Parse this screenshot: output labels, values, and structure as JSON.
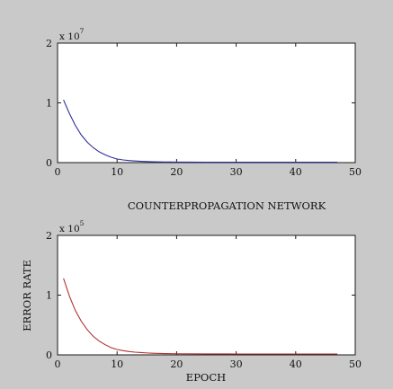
{
  "colors": {
    "figure_background": "#c9c9c9",
    "axes_background": "#ffffff",
    "axis": "#1a1a1a",
    "top_series": "#2f2f9a",
    "bottom_series": "#b03030"
  },
  "chart_data": [
    {
      "type": "line",
      "title": "",
      "xlabel": "",
      "ylabel": "",
      "xlim": [
        0,
        50
      ],
      "ylim": [
        0,
        2
      ],
      "x_ticks": [
        "0",
        "10",
        "20",
        "30",
        "40",
        "50"
      ],
      "y_ticks": [
        "0",
        "1",
        "2"
      ],
      "y_multiplier": {
        "base": "x 10",
        "exponent": "7"
      },
      "grid": false,
      "legend": "none",
      "series": [
        {
          "color": "#2f2f9a",
          "x": [
            1,
            2,
            3,
            4,
            5,
            6,
            7,
            8,
            9,
            10,
            11,
            12,
            13,
            14,
            15,
            16,
            17,
            18,
            19,
            20,
            22,
            25,
            30,
            35,
            40,
            45,
            47
          ],
          "y": [
            1.05,
            0.82,
            0.62,
            0.46,
            0.34,
            0.25,
            0.18,
            0.13,
            0.09,
            0.06,
            0.045,
            0.035,
            0.028,
            0.022,
            0.018,
            0.015,
            0.013,
            0.011,
            0.01,
            0.009,
            0.008,
            0.007,
            0.006,
            0.006,
            0.006,
            0.006,
            0.006
          ]
        }
      ]
    },
    {
      "type": "line",
      "title": "COUNTERPROPAGATION NETWORK",
      "xlabel": "EPOCH",
      "ylabel": "ERROR RATE",
      "xlim": [
        0,
        50
      ],
      "ylim": [
        0,
        2
      ],
      "x_ticks": [
        "0",
        "10",
        "20",
        "30",
        "40",
        "50"
      ],
      "y_ticks": [
        "0",
        "1",
        "2"
      ],
      "y_multiplier": {
        "base": "x 10",
        "exponent": "5"
      },
      "grid": false,
      "legend": "none",
      "series": [
        {
          "color": "#b03030",
          "x": [
            1,
            2,
            3,
            4,
            5,
            6,
            7,
            8,
            9,
            10,
            11,
            12,
            13,
            14,
            15,
            16,
            18,
            20,
            25,
            30,
            35,
            40,
            45,
            47
          ],
          "y": [
            1.28,
            0.98,
            0.74,
            0.56,
            0.42,
            0.31,
            0.23,
            0.17,
            0.12,
            0.09,
            0.07,
            0.055,
            0.045,
            0.038,
            0.032,
            0.028,
            0.022,
            0.019,
            0.016,
            0.015,
            0.015,
            0.015,
            0.015,
            0.015
          ]
        }
      ]
    }
  ]
}
